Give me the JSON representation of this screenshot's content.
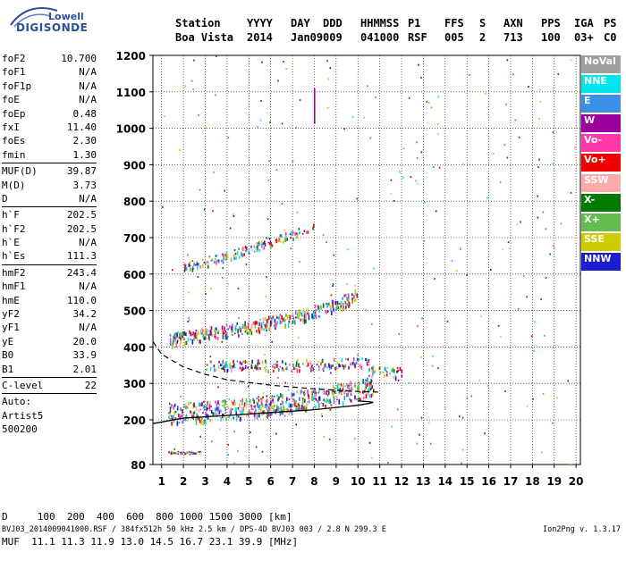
{
  "logo": {
    "line1": "Lowell",
    "line2": "DIGISONDE"
  },
  "header": {
    "row1": [
      "Station",
      "YYYY",
      "DAY",
      "DDD",
      "HHMMSS",
      "P1",
      "FFS",
      "S",
      "AXN",
      "PPS",
      "IGA",
      "PS"
    ],
    "row2": [
      "Boa Vista",
      "2014",
      "Jan09",
      "009",
      "041000",
      "RSF",
      "005",
      "2",
      "713",
      "100",
      "03+",
      "C0"
    ]
  },
  "params": [
    [
      {
        "k": "foF2",
        "v": "10.700"
      },
      {
        "k": "foF1",
        "v": "N/A"
      },
      {
        "k": "foF1p",
        "v": "N/A"
      },
      {
        "k": "foE",
        "v": "N/A"
      },
      {
        "k": "foEp",
        "v": "0.48"
      },
      {
        "k": "fxI",
        "v": "11.40"
      },
      {
        "k": "foEs",
        "v": "2.30"
      },
      {
        "k": "fmin",
        "v": "1.30"
      }
    ],
    [
      {
        "k": "MUF(D)",
        "v": "39.87"
      },
      {
        "k": "M(D)",
        "v": "3.73"
      },
      {
        "k": "D",
        "v": "N/A"
      }
    ],
    [
      {
        "k": "h`F",
        "v": "202.5"
      },
      {
        "k": "h`F2",
        "v": "202.5"
      },
      {
        "k": "h`E",
        "v": "N/A"
      },
      {
        "k": "h`Es",
        "v": "111.3"
      }
    ],
    [
      {
        "k": "hmF2",
        "v": "243.4"
      },
      {
        "k": "hmF1",
        "v": "N/A"
      },
      {
        "k": "hmE",
        "v": "110.0"
      },
      {
        "k": "yF2",
        "v": "34.2"
      },
      {
        "k": "yF1",
        "v": "N/A"
      },
      {
        "k": "yE",
        "v": "20.0"
      },
      {
        "k": "B0",
        "v": "33.9"
      },
      {
        "k": "B1",
        "v": "2.01"
      }
    ],
    [
      {
        "k": "C-level",
        "v": "22"
      }
    ]
  ],
  "autoscale": {
    "line1": "Auto:",
    "line2": "Artist5",
    "line3": "500200"
  },
  "legend": [
    {
      "label": "NoVal",
      "color": "#9e9e9e"
    },
    {
      "label": "NNE",
      "color": "#00e5ee"
    },
    {
      "label": "E",
      "color": "#3a8ee6"
    },
    {
      "label": "W",
      "color": "#9b009b"
    },
    {
      "label": "Vo-",
      "color": "#ff3aa8"
    },
    {
      "label": "Vo+",
      "color": "#ee0000"
    },
    {
      "label": "SSW",
      "color": "#ffa9a9"
    },
    {
      "label": "X-",
      "color": "#007a00"
    },
    {
      "label": "X+",
      "color": "#66bb4e"
    },
    {
      "label": "SSE",
      "color": "#cccc00"
    },
    {
      "label": "NNW",
      "color": "#1d1dd0"
    }
  ],
  "bottom": {
    "d_row": "D     100  200  400  600  800 1000 1500 3000 [km]",
    "muf_row": "MUF  11.1 11.3 11.9 13.0 14.5 16.7 23.1 39.9 [MHz]"
  },
  "footer": {
    "left": "BVJ03_2014009041000.RSF / 384fx512h 50 kHz 2.5 km / DPS-4D BVJ03 003 / 2.8 N 299.3 E",
    "right": "Ion2Png v. 1.3.17"
  },
  "chart_data": {
    "type": "scatter",
    "x_ticks": [
      1,
      2,
      3,
      4,
      5,
      6,
      7,
      8,
      9,
      10,
      11,
      12,
      13,
      14,
      15,
      16,
      17,
      18,
      19,
      20
    ],
    "y_ticks": [
      80,
      200,
      300,
      400,
      500,
      600,
      700,
      800,
      900,
      1000,
      1100,
      1200
    ],
    "xlim": [
      0.6,
      20.2
    ],
    "ylim": [
      80,
      1200
    ],
    "y_scale_breaks": {
      "80": 520,
      "1200": 62
    },
    "grid": true,
    "legend_position": "right",
    "traces": [
      {
        "name": "F-trace O (1st hop)",
        "x": [
          1.3,
          2,
          3,
          4,
          5,
          6,
          7,
          8,
          9,
          10,
          10.7
        ],
        "y": [
          210,
          212,
          215,
          220,
          225,
          232,
          240,
          252,
          262,
          275,
          290
        ]
      },
      {
        "name": "F-trace 2nd hop",
        "x": [
          1.3,
          2,
          3,
          4,
          5,
          6,
          7,
          8,
          9,
          10
        ],
        "y": [
          415,
          422,
          430,
          440,
          450,
          462,
          475,
          492,
          510,
          540
        ]
      },
      {
        "name": "F-trace 3rd hop",
        "x": [
          2,
          3,
          4,
          5,
          6,
          7,
          8
        ],
        "y": [
          615,
          630,
          648,
          665,
          685,
          705,
          725
        ]
      },
      {
        "name": "Es",
        "x": [
          1.3,
          1.6,
          2,
          2.3,
          2.8
        ],
        "y": [
          112,
          112,
          111,
          111,
          112
        ]
      },
      {
        "name": "X trace",
        "x": [
          3,
          5,
          7,
          9,
          10,
          11,
          12
        ],
        "y": [
          345,
          345,
          345,
          350,
          360,
          330,
          325
        ]
      }
    ],
    "profile_solid": {
      "x": [
        0.6,
        2,
        4,
        6,
        8,
        9,
        10,
        10.5,
        10.7,
        10.5,
        10
      ],
      "y": [
        190,
        205,
        212,
        220,
        228,
        234,
        240,
        245,
        248,
        250,
        252
      ]
    },
    "profile_dashed": {
      "x": [
        0.6,
        1,
        2,
        3,
        4,
        6,
        8,
        10,
        11
      ],
      "y": [
        415,
        380,
        345,
        325,
        310,
        295,
        285,
        278,
        276
      ]
    }
  }
}
